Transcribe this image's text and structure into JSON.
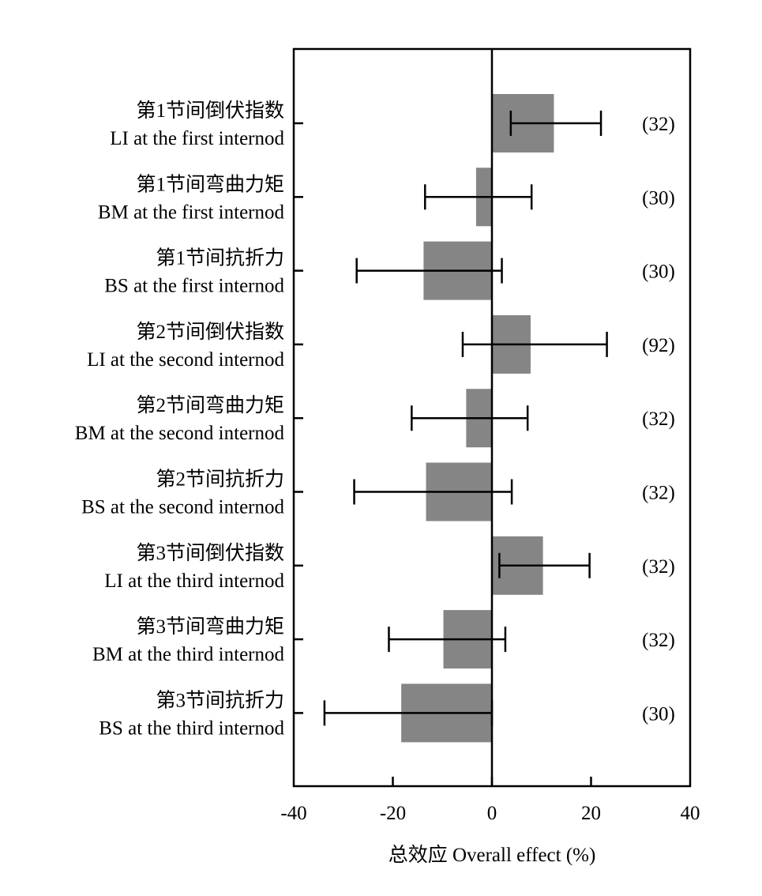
{
  "chart_data": {
    "type": "bar",
    "orientation": "horizontal",
    "xlabel": "总效应 Overall effect (%)",
    "xlim": [
      -40,
      40
    ],
    "xticks": [
      -40,
      -20,
      0,
      20,
      40
    ],
    "xtick_labels": [
      "-40",
      "-20",
      "0",
      "20",
      "40"
    ],
    "grid": false,
    "bar_color": "#858585",
    "categories": [
      {
        "zh": "第1节间倒伏指数",
        "en": "LI at the first internod"
      },
      {
        "zh": "第1节间弯曲力矩",
        "en": "BM at the first internod"
      },
      {
        "zh": "第1节间抗折力",
        "en": "BS at the first internod"
      },
      {
        "zh": "第2节间倒伏指数",
        "en": "LI at the second internod"
      },
      {
        "zh": "第2节间弯曲力矩",
        "en": "BM at the second internod"
      },
      {
        "zh": "第2节间抗折力",
        "en": "BS at the second internod"
      },
      {
        "zh": "第3节间倒伏指数",
        "en": "LI at the third internod"
      },
      {
        "zh": "第3节间弯曲力矩",
        "en": "BM at the third internod"
      },
      {
        "zh": "第3节间抗折力",
        "en": "BS at the third internod"
      }
    ],
    "values": [
      12.5,
      -3.2,
      -13.8,
      7.8,
      -5.2,
      -13.3,
      10.3,
      -9.8,
      -18.3
    ],
    "ci_low": [
      3.8,
      -13.5,
      -27.3,
      -5.9,
      -16.2,
      -27.8,
      1.5,
      -20.8,
      -33.8
    ],
    "ci_high": [
      22.0,
      8.0,
      2.0,
      23.2,
      7.2,
      4.0,
      19.7,
      2.7,
      0
    ],
    "sample_labels": [
      "(32)",
      "(30)",
      "(30)",
      "(92)",
      "(32)",
      "(32)",
      "(32)",
      "(32)",
      "(30)"
    ]
  }
}
